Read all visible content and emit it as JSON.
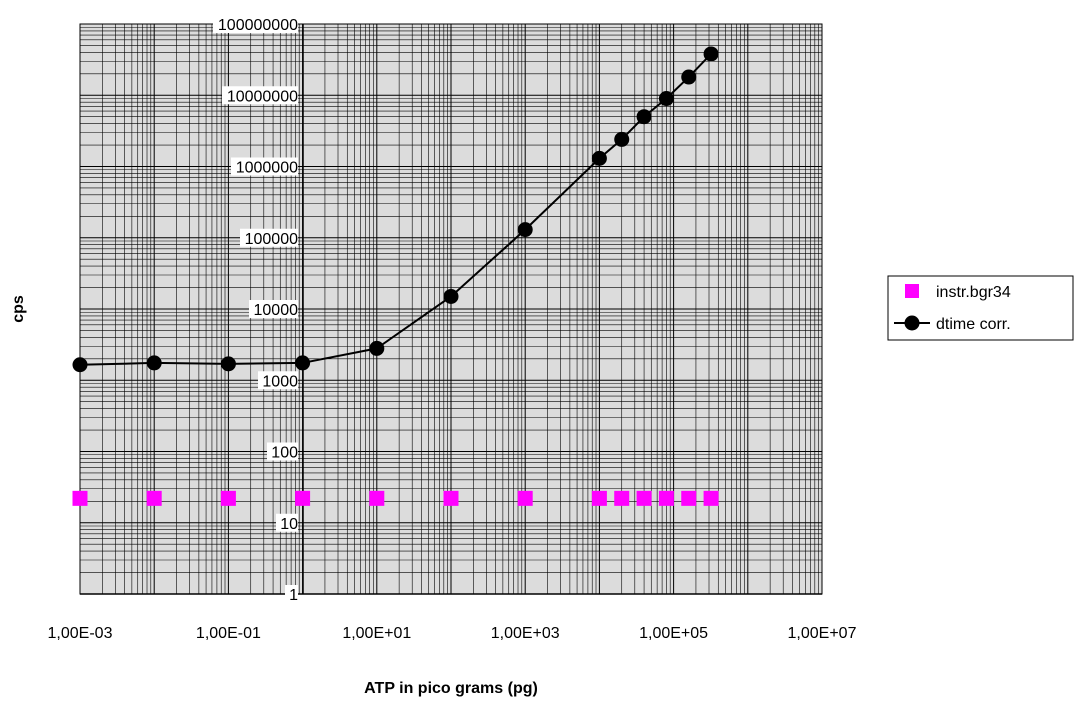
{
  "chart_data": {
    "type": "scatter",
    "xscale": "log",
    "yscale": "log",
    "xlim": [
      0.001,
      10000000
    ],
    "ylim": [
      1,
      100000000
    ],
    "grid": true,
    "xlabel": "ATP in pico grams (pg)",
    "ylabel": "cps",
    "x_tick_labels": [
      "1,00E-03",
      "1,00E-01",
      "1,00E+01",
      "1,00E+03",
      "1,00E+05",
      "1,00E+07"
    ],
    "y_tick_labels": [
      "1",
      "10",
      "100",
      "1000",
      "10000",
      "100000",
      "1000000",
      "10000000",
      "100000000"
    ],
    "legend_position": "right",
    "series": [
      {
        "name": "instr.bgr34",
        "marker": "square",
        "color": "#ff00ff",
        "line": false,
        "x": [
          0.001,
          0.01,
          0.1,
          1,
          10,
          100,
          1000,
          10000,
          20000,
          40000,
          80000,
          160000,
          320000
        ],
        "y": [
          22,
          22,
          22,
          22,
          22,
          22,
          22,
          22,
          22,
          22,
          22,
          22,
          22
        ]
      },
      {
        "name": "dtime corr.",
        "marker": "circle",
        "color": "#000000",
        "line": true,
        "x": [
          0.001,
          0.01,
          0.1,
          1,
          10,
          100,
          1000,
          10000,
          20000,
          40000,
          80000,
          160000,
          320000
        ],
        "y": [
          1650,
          1750,
          1700,
          1750,
          2800,
          15000,
          130000,
          1300000,
          2400000,
          5000000,
          9000000,
          18000000,
          38000000
        ]
      }
    ]
  }
}
